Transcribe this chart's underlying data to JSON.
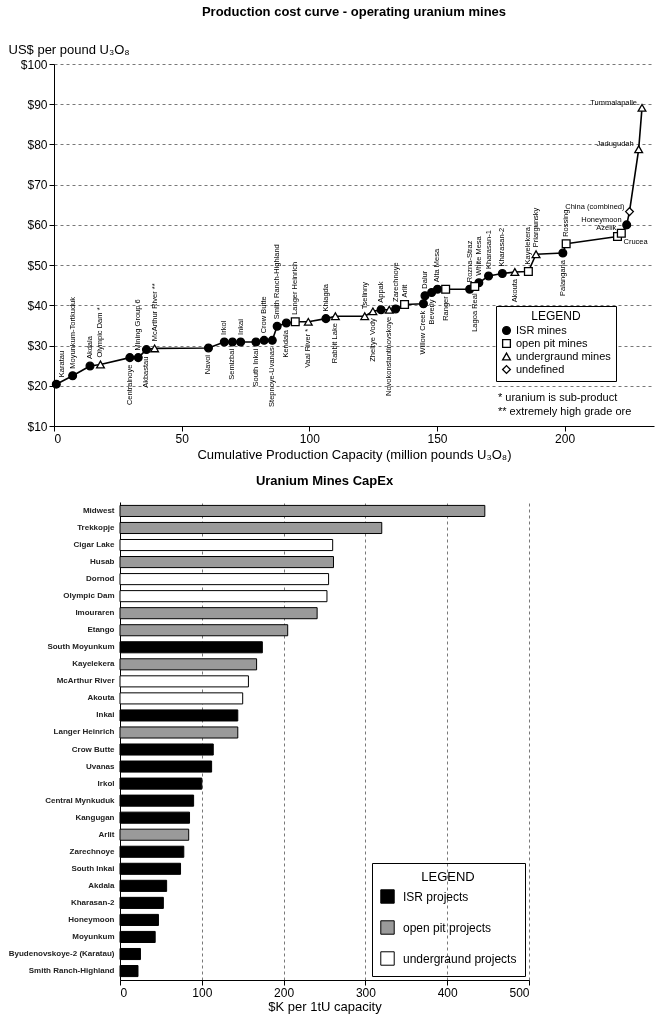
{
  "chart_data": [
    {
      "type": "line",
      "title": "Production cost curve - operating uranium mines",
      "ylabel": "US$ per pound U₃O₈",
      "xlabel": "Cumulative Production Capacity (million pounds U₃O₈)",
      "legend_title": "LEGEND",
      "legend": "bottom right",
      "grid": "y",
      "xlim": [
        0,
        235
      ],
      "xticks": [
        0,
        50,
        100,
        150,
        200
      ],
      "ylim": [
        10,
        100
      ],
      "yticks": [
        {
          "value": 10,
          "label": "$10"
        },
        {
          "value": 20,
          "label": "$20"
        },
        {
          "value": 30,
          "label": "$30"
        },
        {
          "value": 40,
          "label": "$40"
        },
        {
          "value": 50,
          "label": "$50"
        },
        {
          "value": 60,
          "label": "$60"
        },
        {
          "value": 70,
          "label": "$70"
        },
        {
          "value": 80,
          "label": "$80"
        },
        {
          "value": 90,
          "label": "$90"
        },
        {
          "value": 100,
          "label": "$100"
        }
      ],
      "series": [
        {
          "type": "line",
          "color": "#000000",
          "x": [
            0.9,
            7.3,
            14.1,
            18.2,
            29.7,
            33.0,
            36.2,
            39.4,
            60.5,
            66.7,
            69.9,
            73.1,
            79.1,
            82.3,
            85.5,
            87.4,
            91.0,
            94.5,
            99.6,
            106.5,
            110.2,
            121.7,
            124.9,
            128.1,
            131.3,
            133.8,
            137.3,
            144.7,
            145.3,
            147.9,
            150.2,
            153.4,
            162.8,
            164.8,
            166.4,
            170.2,
            175.6,
            180.5,
            185.8,
            188.8,
            199.3,
            200.6,
            220.7,
            222.2,
            224.3,
            225.4,
            229.0,
            230.3
          ],
          "values": [
            20.4,
            22.5,
            24.9,
            25.3,
            27.0,
            27.0,
            29.0,
            29.3,
            29.4,
            30.9,
            30.9,
            30.9,
            30.9,
            31.3,
            31.3,
            34.8,
            35.6,
            35.9,
            35.9,
            36.7,
            37.3,
            37.3,
            38.5,
            38.9,
            38.9,
            39.1,
            40.2,
            40.4,
            42.4,
            43.2,
            44.0,
            44.0,
            44.0,
            44.7,
            45.6,
            47.3,
            47.9,
            48.3,
            48.4,
            52.7,
            53.0,
            55.3,
            57.1,
            57.9,
            60.0,
            63.3,
            78.8,
            89.1
          ]
        },
        {
          "type": "scatter",
          "name": "ISR mines",
          "color": "#000000",
          "marker": "circle",
          "x": [
            0.9,
            7.3,
            14.1,
            29.7,
            33.0,
            36.2,
            60.5,
            66.7,
            69.9,
            73.1,
            79.1,
            82.3,
            85.5,
            87.4,
            91.0,
            106.5,
            128.1,
            133.8,
            144.7,
            145.3,
            147.9,
            150.2,
            162.8,
            166.4,
            170.2,
            175.6,
            199.3,
            224.3
          ],
          "values": [
            20.4,
            22.5,
            24.9,
            27.0,
            27.0,
            29.0,
            29.4,
            30.9,
            30.9,
            30.9,
            30.9,
            31.3,
            31.3,
            34.8,
            35.6,
            36.7,
            38.9,
            39.1,
            40.4,
            42.4,
            43.2,
            44.0,
            44.0,
            45.6,
            47.3,
            47.9,
            53.0,
            60.0
          ]
        },
        {
          "type": "scatter",
          "name": "open pit mines",
          "color": "#000000",
          "marker": "square",
          "x": [
            94.5,
            137.3,
            153.4,
            164.8,
            185.8,
            200.6,
            220.7,
            222.2
          ],
          "values": [
            35.9,
            40.2,
            44.0,
            44.7,
            48.4,
            55.3,
            57.1,
            57.9
          ]
        },
        {
          "type": "scatter",
          "name": "undergraund mines",
          "color": "#000000",
          "marker": "triangle",
          "x": [
            18.2,
            39.4,
            99.6,
            110.2,
            121.7,
            124.9,
            131.3,
            180.5,
            188.8,
            229.0,
            230.3
          ],
          "values": [
            25.3,
            29.3,
            35.9,
            37.3,
            37.3,
            38.5,
            38.9,
            48.3,
            52.7,
            78.8,
            89.1
          ]
        },
        {
          "type": "scatter",
          "name": "undefined",
          "color": "#000000",
          "marker": "diamond",
          "x": [
            225.4
          ],
          "values": [
            63.3
          ]
        }
      ],
      "annotations": [
        {
          "text": "Karatau",
          "x": 0.9,
          "y": 20.4
        },
        {
          "text": "Moyunkum-Tortkuduk",
          "x": 7.3,
          "y": 22.5
        },
        {
          "text": "Akdala",
          "x": 14.1,
          "y": 24.9
        },
        {
          "text": "Olympic Dam *",
          "x": 18.2,
          "y": 25.3
        },
        {
          "text": "Centralnoye",
          "x": 29.7,
          "y": 27.0
        },
        {
          "text": "Mining Group 6",
          "x": 33.0,
          "y": 27.0
        },
        {
          "text": "Akbastau",
          "x": 36.2,
          "y": 29.0
        },
        {
          "text": "McArthur River **",
          "x": 39.4,
          "y": 29.3
        },
        {
          "text": "Navoi",
          "x": 60.5,
          "y": 29.4
        },
        {
          "text": "Irkol",
          "x": 66.7,
          "y": 30.9
        },
        {
          "text": "Semizbai",
          "x": 69.9,
          "y": 30.9
        },
        {
          "text": "Inkai",
          "x": 73.1,
          "y": 30.9
        },
        {
          "text": "South Inkai",
          "x": 79.1,
          "y": 30.9
        },
        {
          "text": "Crow Butte",
          "x": 82.3,
          "y": 31.3
        },
        {
          "text": "Stepnoye-Uvanas",
          "x": 85.5,
          "y": 31.3
        },
        {
          "text": "Smith Ranch-Highland",
          "x": 87.4,
          "y": 34.8
        },
        {
          "text": "Kendala",
          "x": 91.0,
          "y": 35.6
        },
        {
          "text": "Langer Heinrich",
          "x": 94.5,
          "y": 35.9
        },
        {
          "text": "Vaal River *",
          "x": 99.6,
          "y": 35.9
        },
        {
          "text": "Khiagda",
          "x": 106.5,
          "y": 36.7
        },
        {
          "text": "Rabbit Lake",
          "x": 110.2,
          "y": 37.3
        },
        {
          "text": "Tselinny",
          "x": 121.7,
          "y": 37.3
        },
        {
          "text": "Zheltye Vody",
          "x": 124.9,
          "y": 38.5
        },
        {
          "text": "Appak",
          "x": 128.1,
          "y": 38.9
        },
        {
          "text": "Novokonstantinovskoye",
          "x": 131.3,
          "y": 38.9
        },
        {
          "text": "Zarechnoye",
          "x": 133.8,
          "y": 39.1
        },
        {
          "text": "Arlit",
          "x": 137.3,
          "y": 40.2
        },
        {
          "text": "Willow Creek",
          "x": 144.7,
          "y": 40.4
        },
        {
          "text": "Dalur",
          "x": 145.3,
          "y": 42.4
        },
        {
          "text": "Beverly",
          "x": 147.9,
          "y": 43.2
        },
        {
          "text": "Alta Mesa",
          "x": 150.2,
          "y": 44.0
        },
        {
          "text": "Ranger",
          "x": 153.4,
          "y": 44.0
        },
        {
          "text": "Rozna-Straz",
          "x": 162.8,
          "y": 44.0
        },
        {
          "text": "Lagoa Real",
          "x": 164.8,
          "y": 44.7
        },
        {
          "text": "White Mesa",
          "x": 166.4,
          "y": 45.6
        },
        {
          "text": "Kharasan-1",
          "x": 170.2,
          "y": 47.3
        },
        {
          "text": "Kharasan-2",
          "x": 175.6,
          "y": 47.9
        },
        {
          "text": "Akouta",
          "x": 180.5,
          "y": 48.3
        },
        {
          "text": "Kayelekera",
          "x": 185.8,
          "y": 48.4
        },
        {
          "text": "Priargunsky",
          "x": 188.8,
          "y": 52.7
        },
        {
          "text": "Palangana",
          "x": 199.3,
          "y": 53.0
        },
        {
          "text": "Rossing",
          "x": 200.6,
          "y": 55.3
        },
        {
          "text": "Crucea",
          "x": 220.7,
          "y": 57.1
        },
        {
          "text": "Azelik",
          "x": 222.2,
          "y": 57.9
        },
        {
          "text": "Honeymoon",
          "x": 224.3,
          "y": 60.0
        },
        {
          "text": "China (combined)",
          "x": 225.4,
          "y": 63.3
        },
        {
          "text": "Jadugudah",
          "x": 229.0,
          "y": 78.8
        },
        {
          "text": "Tummalapalle",
          "x": 230.3,
          "y": 89.1
        },
        "* uranium is sub-product",
        "** extremely high grade ore"
      ]
    },
    {
      "type": "bar",
      "orientation": "horizontal",
      "title": "Uranium Mines CapEx",
      "xlabel": "$K per 1tU capacity",
      "legend_title": "LEGEND",
      "legend": "bottom right",
      "grid": "x",
      "xlim": [
        0,
        500
      ],
      "xticks": [
        0,
        100,
        200,
        300,
        400,
        500
      ],
      "categories": [
        "Midwest",
        "Trekkopje",
        "Cigar Lake",
        "Husab",
        "Dornod",
        "Olympic Dam",
        "Imouraren",
        "Etango",
        "South Moyunkum",
        "Kayelekera",
        "McArthur River",
        "Akouta",
        "Inkai",
        "Langer Heinrich",
        "Crow Butte",
        "Uvanas",
        "Irkol",
        "Central Mynkuduk",
        "Kangugan",
        "Arlit",
        "Zarechnoye",
        "South Inkai",
        "Akdala",
        "Kharasan-2",
        "Honeymoon",
        "Moyunkum",
        "Byudenovskoye-2 (Karatau)",
        "Smith Ranch-Highland"
      ],
      "series": [
        {
          "name": "ISR projects",
          "color": "#000000",
          "values": [
            null,
            null,
            null,
            null,
            null,
            null,
            null,
            null,
            174,
            null,
            null,
            null,
            144,
            null,
            114,
            112,
            100,
            90,
            85,
            null,
            78,
            74,
            57,
            53,
            47,
            43,
            25,
            22
          ]
        },
        {
          "name": "open pit projects",
          "color": "#9a9a9a",
          "values": [
            446,
            320,
            null,
            261,
            null,
            null,
            241,
            205,
            null,
            167,
            null,
            null,
            null,
            144,
            null,
            null,
            null,
            null,
            null,
            84,
            null,
            null,
            null,
            null,
            null,
            null,
            null,
            null
          ]
        },
        {
          "name": "undergraund projects",
          "color": "#ffffff",
          "values": [
            null,
            null,
            260,
            null,
            255,
            253,
            null,
            null,
            null,
            null,
            157,
            150,
            null,
            null,
            null,
            null,
            null,
            null,
            null,
            null,
            null,
            null,
            null,
            null,
            null,
            null,
            null,
            null
          ]
        }
      ]
    }
  ]
}
